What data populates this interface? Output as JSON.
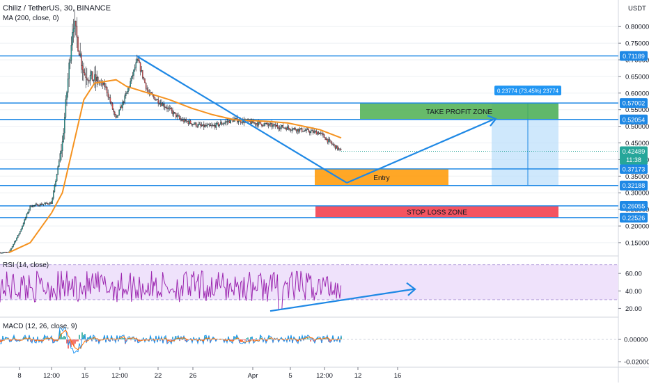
{
  "header": {
    "title": "Chiliz / TetherUS, 30, BINANCE",
    "ma_label": "MA (200, close, 0)",
    "rsi_label": "RSI (14, close)",
    "macd_label": "MACD (12, 26, close, 9)"
  },
  "colors": {
    "level_line": "#1e88e5",
    "ma": "#f5921f",
    "rsi": "#9c27b0",
    "rsi_band": "#efe2fb",
    "take_profit": "#4caf50",
    "entry": "#ff9800",
    "stop_loss": "#f23645",
    "projection": "#1e88e5",
    "axis_text": "#131722"
  },
  "chart_data": [
    {
      "type": "candlestick",
      "title": "Chiliz / TetherUS, 30, BINANCE",
      "currency": "USDT",
      "x_tick_labels": [
        "8",
        "12:00",
        "15",
        "12:00",
        "22",
        "26",
        "Apr",
        "5",
        "12:00",
        "12",
        "16"
      ],
      "y_ticks": [
        0.8,
        0.75,
        0.7,
        0.65,
        0.6,
        0.55,
        0.5,
        0.45,
        0.4,
        0.35,
        0.3,
        0.25,
        0.2,
        0.15
      ],
      "ylim": [
        0.11,
        0.88
      ],
      "price_levels": [
        0.71189,
        0.57002,
        0.52054,
        0.37173,
        0.32188,
        0.26055,
        0.22526
      ],
      "current_price": {
        "value": "0.42489",
        "countdown": "11:38"
      },
      "series": [
        {
          "name": "Price",
          "kind": "candles",
          "approx_close_path": [
            {
              "day": "Mar 7",
              "value": 0.12
            },
            {
              "day": "Mar 8",
              "value": 0.18
            },
            {
              "day": "Mar 9",
              "value": 0.26
            },
            {
              "day": "Mar 11",
              "value": 0.27
            },
            {
              "day": "Mar 12",
              "value": 0.45
            },
            {
              "day": "Mar 13",
              "value": 0.82
            },
            {
              "day": "Mar 14",
              "value": 0.66
            },
            {
              "day": "Mar 16",
              "value": 0.62
            },
            {
              "day": "Mar 17",
              "value": 0.52
            },
            {
              "day": "Mar 18",
              "value": 0.6
            },
            {
              "day": "Mar 19",
              "value": 0.7
            },
            {
              "day": "Mar 20",
              "value": 0.6
            },
            {
              "day": "Mar 22",
              "value": 0.55
            },
            {
              "day": "Mar 23",
              "value": 0.52
            },
            {
              "day": "Mar 25",
              "value": 0.5
            },
            {
              "day": "Mar 26",
              "value": 0.5
            },
            {
              "day": "Mar 28",
              "value": 0.52
            },
            {
              "day": "Mar 30",
              "value": 0.51
            },
            {
              "day": "Apr 1",
              "value": 0.5
            },
            {
              "day": "Apr 3",
              "value": 0.49
            },
            {
              "day": "Apr 5",
              "value": 0.48
            },
            {
              "day": "Apr 6",
              "value": 0.45
            },
            {
              "day": "Apr 7",
              "value": 0.425
            }
          ]
        },
        {
          "name": "MA (200, close, 0)",
          "kind": "line",
          "values": [
            {
              "day": "Mar 7",
              "value": 0.12
            },
            {
              "day": "Mar 9",
              "value": 0.15
            },
            {
              "day": "Mar 11",
              "value": 0.24
            },
            {
              "day": "Mar 12",
              "value": 0.3
            },
            {
              "day": "Mar 13",
              "value": 0.44
            },
            {
              "day": "Mar 14",
              "value": 0.58
            },
            {
              "day": "Mar 15",
              "value": 0.63
            },
            {
              "day": "Mar 17",
              "value": 0.64
            },
            {
              "day": "Mar 18",
              "value": 0.62
            },
            {
              "day": "Mar 20",
              "value": 0.6
            },
            {
              "day": "Mar 22",
              "value": 0.58
            },
            {
              "day": "Mar 24",
              "value": 0.555
            },
            {
              "day": "Mar 26",
              "value": 0.535
            },
            {
              "day": "Mar 28",
              "value": 0.52
            },
            {
              "day": "Mar 31",
              "value": 0.515
            },
            {
              "day": "Apr 2",
              "value": 0.51
            },
            {
              "day": "Apr 5",
              "value": 0.49
            },
            {
              "day": "Apr 7",
              "value": 0.465
            }
          ]
        }
      ],
      "annotations": {
        "take_profit_label": "TAKE PROFIT ZONE",
        "entry_label": "Entry",
        "stop_loss_label": "STOP LOSS ZONE",
        "measure_label": "0.23774 (73.45%) 23774",
        "take_profit_range": [
          0.52054,
          0.57002
        ],
        "entry_range": [
          0.32188,
          0.37173
        ],
        "stop_loss_range": [
          0.22526,
          0.26055
        ],
        "projection_box_range": [
          0.32188,
          0.57002
        ],
        "downtrend_line": [
          {
            "day": "Mar 19",
            "value": 0.71
          },
          {
            "day": "Apr 9",
            "value": 0.33
          }
        ],
        "projected_path": [
          {
            "day": "Apr 9",
            "value": 0.33
          },
          {
            "day": "Apr 13",
            "value": 0.52
          }
        ]
      }
    },
    {
      "type": "line",
      "title": "RSI (14, close)",
      "y_ticks": [
        60.0,
        40.0,
        20.0
      ],
      "ylim": [
        10,
        80
      ],
      "band": [
        30,
        70
      ],
      "approx_range": [
        18,
        70
      ],
      "trend_arrow": [
        {
          "day": "Apr 5",
          "value": 17
        },
        {
          "day": "Apr 14",
          "value": 42
        }
      ]
    },
    {
      "type": "histogram",
      "title": "MACD (12, 26, close, 9)",
      "y_ticks": [
        "0.00000",
        "-0.02000"
      ],
      "ylim": [
        -0.025,
        0.02
      ],
      "approx_range": [
        -0.02,
        0.015
      ]
    }
  ]
}
